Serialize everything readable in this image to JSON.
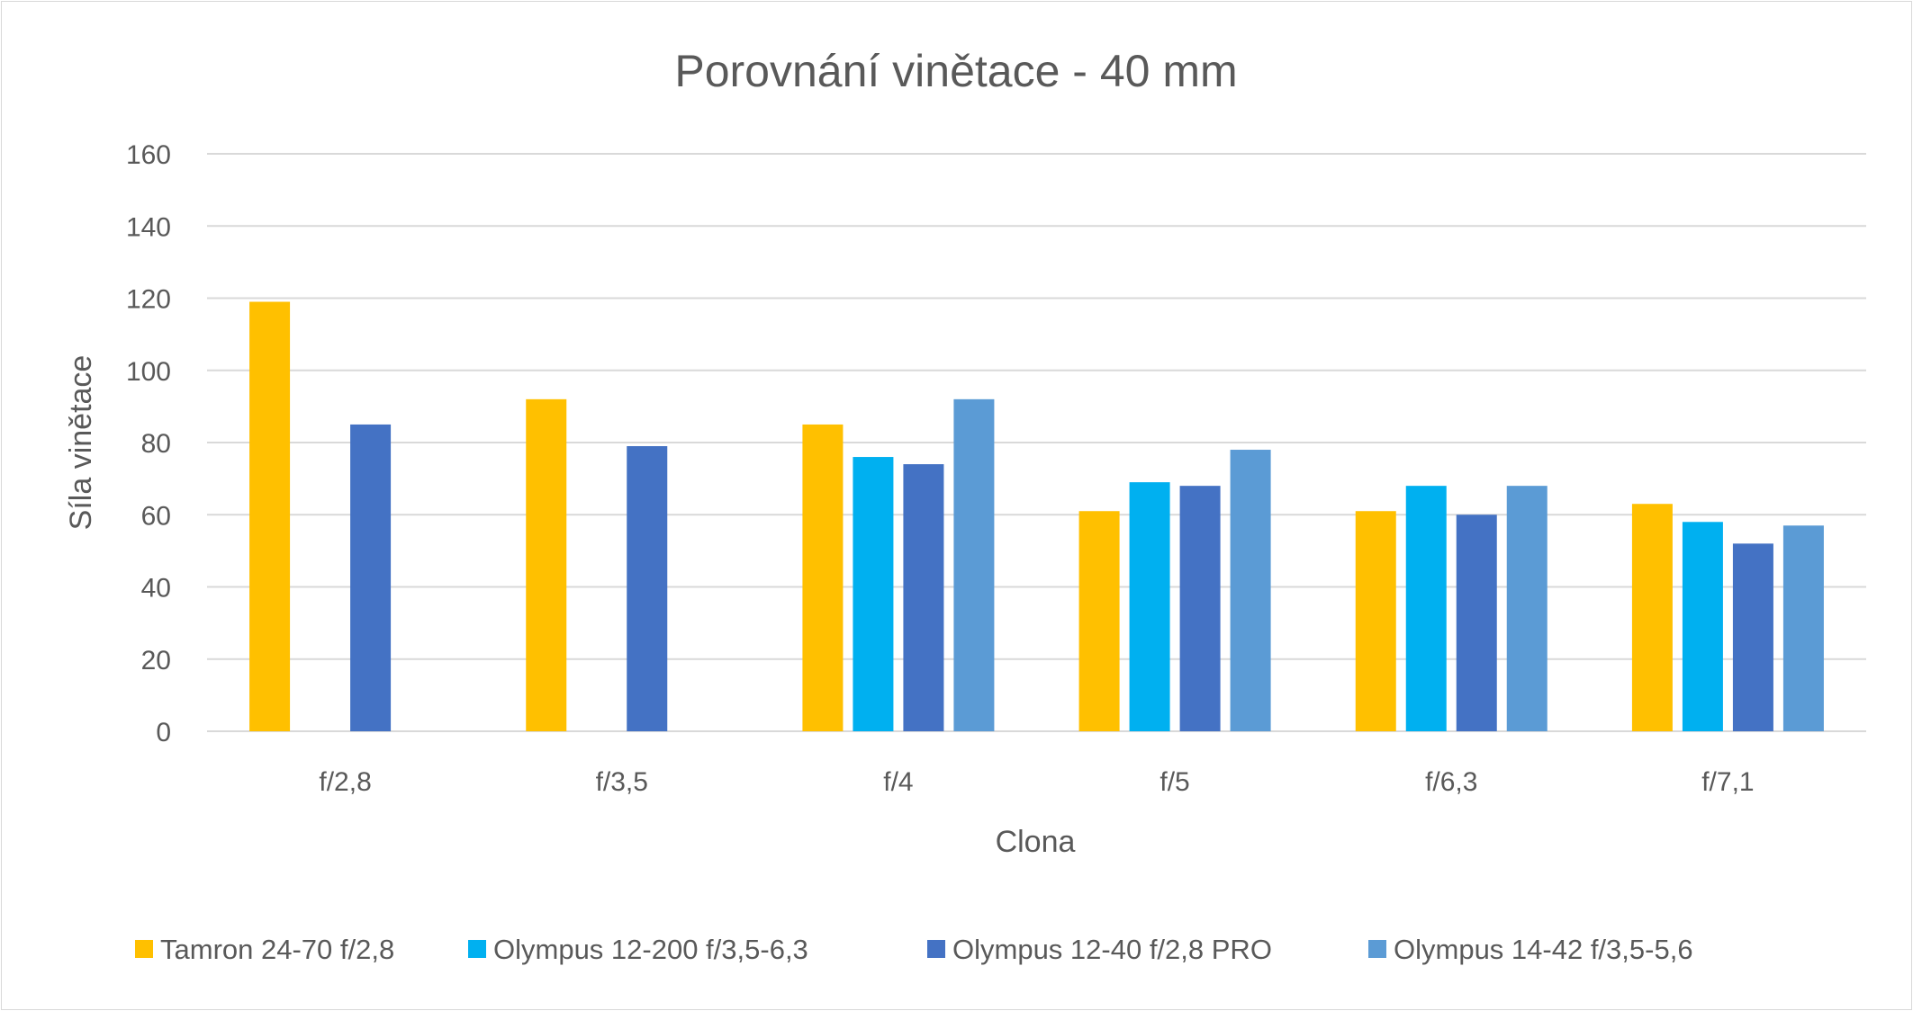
{
  "chart_data": {
    "type": "bar",
    "title": "Porovnání vinětace - 40 mm",
    "xlabel": "Clona",
    "ylabel": "Síla vinětace",
    "ylim": [
      0,
      160
    ],
    "yticks": [
      0,
      20,
      40,
      60,
      80,
      100,
      120,
      140,
      160
    ],
    "grid": true,
    "legend_position": "bottom",
    "categories": [
      "f/2,8",
      "f/3,5",
      "f/4",
      "f/5",
      "f/6,3",
      "f/7,1"
    ],
    "series": [
      {
        "name": "Tamron 24-70 f/2,8",
        "color": "#FFC000",
        "values": [
          119,
          92,
          85,
          61,
          61,
          63
        ]
      },
      {
        "name": "Olympus 12-200 f/3,5-6,3",
        "color": "#00B0F0",
        "values": [
          null,
          null,
          76,
          69,
          68,
          58
        ]
      },
      {
        "name": "Olympus 12-40 f/2,8 PRO",
        "color": "#4472C4",
        "values": [
          85,
          79,
          74,
          68,
          60,
          52
        ]
      },
      {
        "name": "Olympus 14-42 f/3,5-5,6",
        "color": "#5B9BD5",
        "values": [
          null,
          null,
          92,
          78,
          68,
          57
        ]
      }
    ]
  }
}
